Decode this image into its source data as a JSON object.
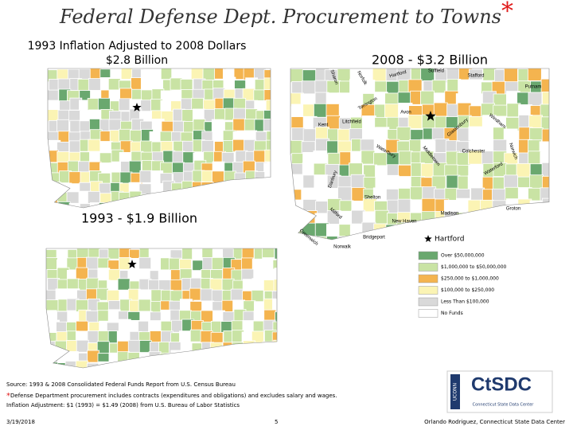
{
  "header": {
    "title": "Federal Defense Dept. Procurement to Towns",
    "title_mark": "*"
  },
  "maps": [
    {
      "title": "1993 Inflation Adjusted to 2008 Dollars",
      "subtitle": "$2.8 Billion"
    },
    {
      "title": "2008 - $3.2 Billion"
    },
    {
      "title": "1993 - $1.9 Billion"
    }
  ],
  "towns": [
    "Sharon",
    "Norfolk",
    "Hartford",
    "Suffield",
    "Stafford",
    "Putnam",
    "Torrington",
    "Avon",
    "Litchfield",
    "Kent",
    "Glastonbury",
    "Windham",
    "Colchester",
    "Norwich",
    "Waterford",
    "Middletown",
    "Waterbury",
    "Danbury",
    "Shelton",
    "Milford",
    "Madison",
    "Groton",
    "New Haven",
    "Bridgeport",
    "Greenwich",
    "Norwalk"
  ],
  "legend": {
    "marker_label": "Hartford",
    "items": [
      {
        "label": "Over $50,000,000",
        "color": "#6aa86f"
      },
      {
        "label": "$1,000,000 to $50,000,000",
        "color": "#c9e3a4"
      },
      {
        "label": "$250,000 to $1,000,000",
        "color": "#f4b44f"
      },
      {
        "label": "$100,000 to $250,000",
        "color": "#fbf4b4"
      },
      {
        "label": "Less Than $100,000",
        "color": "#d9d9d9"
      },
      {
        "label": "No Funds",
        "color": "#ffffff"
      }
    ]
  },
  "footer": {
    "source": "Source: 1993 & 2008 Consolidated Federal Funds Report from U.S. Census Bureau",
    "note_mark": "*",
    "note": "Defense Department procurement includes contracts (expenditures and obligations) and excludes salary and wages.",
    "inflation": "Inflation Adjustment: $1 (1993) = $1.49 (2008) from U.S. Bureau of Labor Statistics",
    "date": "3/19/2018",
    "page": 5,
    "author": "Orlando Rodriguez, Connecticut State Data Center"
  },
  "logo": {
    "name": "CtSDC",
    "subtitle": "Connecticut State Data Center",
    "university": "UCONN"
  }
}
